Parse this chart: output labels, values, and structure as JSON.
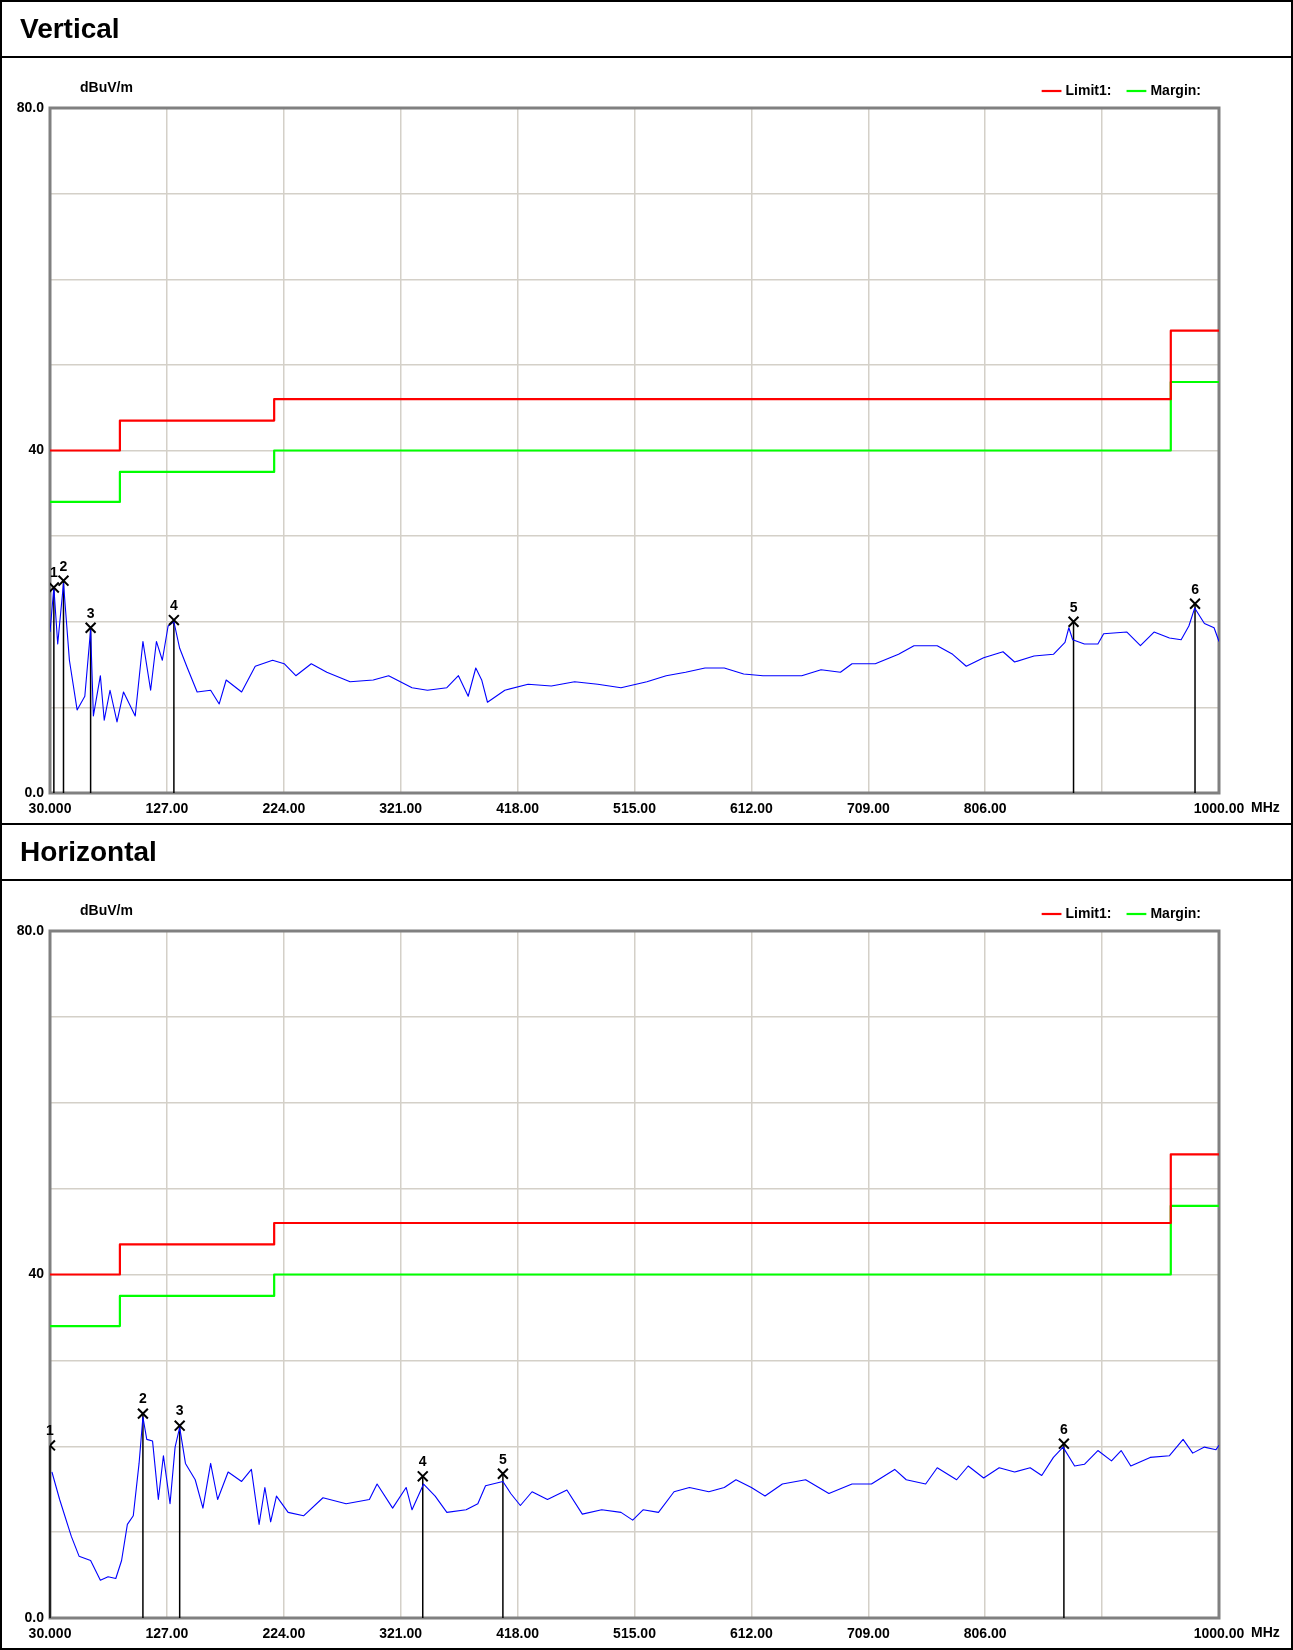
{
  "chart_data": [
    {
      "type": "line",
      "title": "Vertical",
      "ylabel": "dBuV/m",
      "xlabel": "MHz",
      "xlim": [
        30,
        1000
      ],
      "ylim": [
        0,
        80
      ],
      "xticks": [
        {
          "value": 30,
          "label": "30.000"
        },
        {
          "value": 127,
          "label": "127.00"
        },
        {
          "value": 224,
          "label": "224.00"
        },
        {
          "value": 321,
          "label": "321.00"
        },
        {
          "value": 418,
          "label": "418.00"
        },
        {
          "value": 515,
          "label": "515.00"
        },
        {
          "value": 612,
          "label": "612.00"
        },
        {
          "value": 709,
          "label": "709.00"
        },
        {
          "value": 806,
          "label": "806.00"
        },
        {
          "value": 903,
          "label": null
        },
        {
          "value": 1000,
          "label": "1000.00"
        }
      ],
      "yticks": [
        {
          "value": 0,
          "label": "0.0"
        },
        {
          "value": 10,
          "label": null
        },
        {
          "value": 20,
          "label": null
        },
        {
          "value": 30,
          "label": null
        },
        {
          "value": 40,
          "label": "40"
        },
        {
          "value": 50,
          "label": null
        },
        {
          "value": 60,
          "label": null
        },
        {
          "value": 70,
          "label": null
        },
        {
          "value": 80,
          "label": "80.0"
        }
      ],
      "grid": true,
      "legend": "top right",
      "series": [
        {
          "name": "Limit1:",
          "color": "#ff0000",
          "x": [
            30,
            88,
            88,
            216,
            216,
            960,
            960,
            1000
          ],
          "values": [
            40,
            40,
            43.5,
            43.5,
            46,
            46,
            54,
            54
          ]
        },
        {
          "name": "Margin:",
          "color": "#00ff00",
          "x": [
            30,
            88,
            88,
            216,
            216,
            960,
            960,
            1000
          ],
          "values": [
            34,
            34,
            37.5,
            37.5,
            40,
            40,
            48,
            48
          ]
        },
        {
          "color": "#0000ff",
          "x": [
            30,
            33.2,
            36.4,
            41.2,
            46.1,
            52.5,
            58.9,
            63.7,
            66,
            71.8,
            75,
            79.8,
            85.6,
            91,
            100.7,
            107.1,
            113.5,
            118.3,
            123.2,
            128,
            132.8,
            137.6,
            144,
            152.1,
            163.3,
            170.4,
            176.2,
            189,
            200.3,
            214.7,
            224.3,
            234,
            246.8,
            259.7,
            279,
            298.2,
            311,
            330.4,
            343.2,
            359.3,
            368.9,
            377,
            383.3,
            388.2,
            393,
            407.4,
            426.7,
            446,
            465.3,
            484.5,
            503.8,
            525.3,
            541.3,
            557.4,
            573.5,
            589.5,
            605.6,
            621.6,
            637.7,
            653.8,
            669.8,
            685.9,
            695.5,
            714.8,
            734.1,
            746.9,
            766.2,
            779,
            790.3,
            804.7,
            820.8,
            830.4,
            846.5,
            862.6,
            872.2,
            875.4,
            878.6,
            888.3,
            899.5,
            904.3,
            923.6,
            934.8,
            946.1,
            958.9,
            968.6,
            975,
            979.8,
            987.9,
            995.9,
            1000
          ],
          "values": [
            18.8,
            24.0,
            17.4,
            24.5,
            15.5,
            9.7,
            11.3,
            19.1,
            9.0,
            13.7,
            8.5,
            12.0,
            8.3,
            11.8,
            9.0,
            17.7,
            12.0,
            17.7,
            15.5,
            19.5,
            20.0,
            16.9,
            14.6,
            11.8,
            12.0,
            10.4,
            13.2,
            11.8,
            14.8,
            15.5,
            15.1,
            13.7,
            15.1,
            14.1,
            13.0,
            13.2,
            13.7,
            12.3,
            12.0,
            12.3,
            13.7,
            11.3,
            14.6,
            13.2,
            10.6,
            12.0,
            12.7,
            12.5,
            13.0,
            12.7,
            12.3,
            13.0,
            13.7,
            14.1,
            14.6,
            14.6,
            13.9,
            13.7,
            13.7,
            13.7,
            14.4,
            14.1,
            15.1,
            15.1,
            16.2,
            17.2,
            17.2,
            16.2,
            14.8,
            15.8,
            16.5,
            15.3,
            16.0,
            16.2,
            17.6,
            19.3,
            17.9,
            17.4,
            17.4,
            18.6,
            18.8,
            17.2,
            18.8,
            18.1,
            17.9,
            19.5,
            21.6,
            19.8,
            19.3,
            17.7
          ]
        },
        {
          "type": "lollipop",
          "marker": "cross",
          "color": "#000000",
          "x": [
            33.2,
            41.2,
            63.7,
            132.8,
            879.3,
            980.1
          ],
          "values": [
            24.0,
            24.8,
            19.3,
            20.2,
            20.0,
            22.1
          ]
        }
      ],
      "annotations": [
        {
          "text": "1",
          "x": 33.2,
          "y": 24.0
        },
        {
          "text": "2",
          "x": 41.2,
          "y": 24.8
        },
        {
          "text": "3",
          "x": 63.7,
          "y": 19.3
        },
        {
          "text": "4",
          "x": 132.8,
          "y": 20.2
        },
        {
          "text": "5",
          "x": 879.3,
          "y": 20.0
        },
        {
          "text": "6",
          "x": 980.1,
          "y": 22.1
        }
      ]
    },
    {
      "type": "line",
      "title": "Horizontal",
      "ylabel": "dBuV/m",
      "xlabel": "MHz",
      "xlim": [
        30,
        1000
      ],
      "ylim": [
        0,
        80
      ],
      "xticks": [
        {
          "value": 30,
          "label": "30.000"
        },
        {
          "value": 127,
          "label": "127.00"
        },
        {
          "value": 224,
          "label": "224.00"
        },
        {
          "value": 321,
          "label": "321.00"
        },
        {
          "value": 418,
          "label": "418.00"
        },
        {
          "value": 515,
          "label": "515.00"
        },
        {
          "value": 612,
          "label": "612.00"
        },
        {
          "value": 709,
          "label": "709.00"
        },
        {
          "value": 806,
          "label": "806.00"
        },
        {
          "value": 903,
          "label": null
        },
        {
          "value": 1000,
          "label": "1000.00"
        }
      ],
      "yticks": [
        {
          "value": 0,
          "label": "0.0"
        },
        {
          "value": 10,
          "label": null
        },
        {
          "value": 20,
          "label": null
        },
        {
          "value": 30,
          "label": null
        },
        {
          "value": 40,
          "label": "40"
        },
        {
          "value": 50,
          "label": null
        },
        {
          "value": 60,
          "label": null
        },
        {
          "value": 70,
          "label": null
        },
        {
          "value": 80,
          "label": "80.0"
        }
      ],
      "grid": true,
      "legend": "top right",
      "series": [
        {
          "name": "Limit1:",
          "color": "#ff0000",
          "x": [
            30,
            88,
            88,
            216,
            216,
            960,
            960,
            1000
          ],
          "values": [
            40,
            40,
            43.5,
            43.5,
            46,
            46,
            54,
            54
          ]
        },
        {
          "name": "Margin:",
          "color": "#00ff00",
          "x": [
            30,
            88,
            88,
            216,
            216,
            960,
            960,
            1000
          ],
          "values": [
            34,
            34,
            37.5,
            37.5,
            40,
            40,
            48,
            48
          ]
        },
        {
          "color": "#0000ff",
          "x": [
            31.6,
            38,
            47.7,
            54.1,
            63.7,
            71.8,
            78.2,
            84.6,
            89.4,
            94.2,
            99.1,
            103.9,
            107.1,
            110.3,
            115.1,
            119.9,
            124.1,
            129.6,
            133.8,
            137.6,
            142.4,
            150.5,
            156.9,
            163.3,
            169.1,
            177.8,
            189,
            197.1,
            203.5,
            208.3,
            213.1,
            217.9,
            227.6,
            240.4,
            256.5,
            275.7,
            295,
            301.4,
            314.3,
            325.5,
            330.4,
            340,
            349.6,
            359.3,
            375.3,
            385,
            391.4,
            405.8,
            412.3,
            420.3,
            430,
            442.8,
            458.9,
            471.7,
            487.8,
            503.8,
            513.5,
            522.1,
            534.9,
            547.8,
            560.6,
            576.7,
            589.5,
            599.2,
            612,
            623.3,
            637.7,
            657,
            676.3,
            695.5,
            711.6,
            730.9,
            740.5,
            756.6,
            766.2,
            782.3,
            791.9,
            804.7,
            817.6,
            830.4,
            843.3,
            852.9,
            862.6,
            870.6,
            880.2,
            888.3,
            899.5,
            910.8,
            918.8,
            926.8,
            942.9,
            958.9,
            970.2,
            978.2,
            987.9,
            997.5,
            1000
          ],
          "values": [
            17.0,
            13.8,
            9.5,
            7.2,
            6.7,
            4.4,
            4.8,
            4.6,
            6.7,
            10.9,
            11.9,
            18.0,
            23.4,
            20.8,
            20.6,
            13.8,
            18.9,
            13.3,
            19.9,
            22.2,
            18.0,
            16.1,
            12.8,
            18.0,
            13.8,
            17.0,
            15.9,
            17.3,
            10.9,
            15.2,
            11.2,
            14.2,
            12.3,
            11.9,
            14.0,
            13.3,
            13.8,
            15.6,
            12.8,
            15.2,
            12.6,
            15.6,
            14.2,
            12.3,
            12.6,
            13.3,
            15.4,
            15.9,
            14.5,
            13.1,
            14.7,
            13.8,
            14.9,
            12.1,
            12.6,
            12.3,
            11.4,
            12.6,
            12.3,
            14.7,
            15.2,
            14.7,
            15.2,
            16.1,
            15.2,
            14.2,
            15.6,
            16.1,
            14.5,
            15.6,
            15.6,
            17.3,
            16.1,
            15.6,
            17.5,
            16.1,
            17.7,
            16.3,
            17.5,
            17.0,
            17.5,
            16.6,
            18.7,
            19.9,
            17.7,
            17.9,
            19.5,
            18.3,
            19.5,
            17.7,
            18.7,
            18.9,
            20.8,
            19.2,
            19.9,
            19.6,
            20.1
          ]
        },
        {
          "type": "lollipop",
          "marker": "cross",
          "color": "#000000",
          "x": [
            30,
            107.1,
            137.6,
            339.3,
            405.8,
            871.3
          ],
          "values": [
            20.1,
            23.8,
            22.4,
            16.5,
            16.8,
            20.3
          ]
        }
      ],
      "annotations": [
        {
          "text": "1",
          "x": 30,
          "y": 20.1
        },
        {
          "text": "2",
          "x": 107.1,
          "y": 23.8
        },
        {
          "text": "3",
          "x": 137.6,
          "y": 22.4
        },
        {
          "text": "4",
          "x": 339.3,
          "y": 16.5
        },
        {
          "text": "5",
          "x": 405.8,
          "y": 16.8
        },
        {
          "text": "6",
          "x": 871.3,
          "y": 20.3
        }
      ]
    }
  ]
}
